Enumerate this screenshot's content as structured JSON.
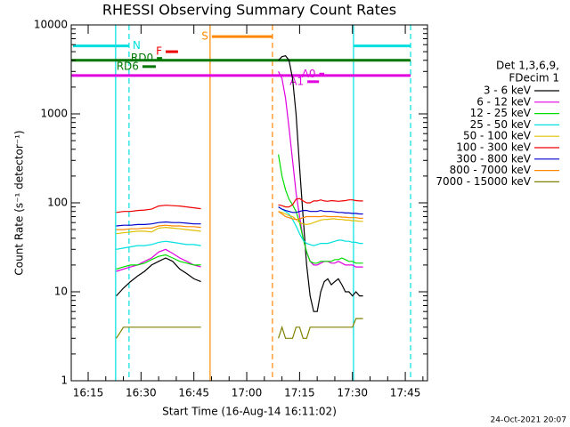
{
  "chart_data": {
    "type": "line",
    "title": "RHESSI Observing Summary Count Rates",
    "x_label": "Start Time (16-Aug-14 16:11:02)",
    "y_label": "Count Rate (s⁻¹ detector⁻¹)",
    "legend_title": [
      "Det 1,3,6,9,",
      "FDecim 1"
    ],
    "footer": "24-Oct-2021 20:07",
    "y_scale": "log",
    "xlim": [
      970.2,
      1071.3
    ],
    "ylim": [
      1,
      10000
    ],
    "xticks": [
      {
        "value": 975,
        "label": "16:15"
      },
      {
        "value": 990,
        "label": "16:30"
      },
      {
        "value": 1005,
        "label": "16:45"
      },
      {
        "value": 1020,
        "label": "17:00"
      },
      {
        "value": 1035,
        "label": "17:15"
      },
      {
        "value": 1050,
        "label": "17:30"
      },
      {
        "value": 1065,
        "label": "17:45"
      }
    ],
    "yticks": [
      1,
      10,
      100,
      1000,
      10000
    ],
    "x": [
      983,
      985,
      987,
      989,
      991,
      993,
      995,
      997,
      999,
      1001,
      1003,
      1005,
      1007,
      1018,
      1029,
      1030,
      1031,
      1032,
      1033,
      1034,
      1035,
      1036,
      1037,
      1038,
      1039,
      1040,
      1041,
      1042,
      1043,
      1044,
      1045,
      1046,
      1047,
      1048,
      1049,
      1050,
      1051,
      1052,
      1053
    ],
    "series": [
      {
        "name": "3 - 6 keV",
        "color": "#000000",
        "values": [
          9,
          11,
          13,
          15,
          17,
          20,
          22,
          24,
          22,
          18,
          16,
          14,
          13,
          null,
          4000,
          4400,
          4500,
          4000,
          2500,
          1000,
          250,
          70,
          20,
          9,
          6,
          6,
          10,
          13,
          14,
          12,
          13,
          14,
          12,
          10,
          10,
          9,
          10,
          9,
          9
        ]
      },
      {
        "name": "6 - 12 keV",
        "color": "#e000e0",
        "values": [
          17,
          18,
          19,
          20,
          22,
          24,
          28,
          30,
          27,
          24,
          22,
          20,
          19,
          null,
          3000,
          2500,
          1500,
          700,
          300,
          130,
          70,
          40,
          28,
          22,
          20,
          20,
          21,
          22,
          22,
          21,
          21,
          22,
          21,
          20,
          20,
          20,
          19,
          19,
          19
        ]
      },
      {
        "name": "12 - 25 keV",
        "color": "#00dd00",
        "values": [
          18,
          19,
          20,
          20,
          21,
          23,
          25,
          26,
          24,
          22,
          21,
          20,
          20,
          null,
          350,
          200,
          140,
          110,
          95,
          80,
          60,
          40,
          28,
          22,
          21,
          21,
          22,
          22,
          22,
          22,
          23,
          23,
          24,
          23,
          22,
          22,
          21,
          21,
          21
        ]
      },
      {
        "name": "25 - 50 keV",
        "color": "#00e0e0",
        "values": [
          30,
          31,
          32,
          33,
          33,
          34,
          36,
          37,
          36,
          35,
          34,
          34,
          33,
          null,
          90,
          85,
          80,
          75,
          65,
          55,
          45,
          38,
          35,
          34,
          33,
          34,
          35,
          35,
          35,
          36,
          37,
          38,
          38,
          37,
          37,
          36,
          36,
          35,
          35
        ]
      },
      {
        "name": "50 - 100 keV",
        "color": "#e0c000",
        "values": [
          45,
          46,
          47,
          48,
          48,
          47,
          52,
          53,
          52,
          51,
          50,
          49,
          48,
          null,
          80,
          78,
          75,
          72,
          70,
          65,
          60,
          58,
          57,
          58,
          60,
          62,
          64,
          65,
          65,
          66,
          66,
          65,
          65,
          64,
          64,
          63,
          63,
          62,
          62
        ]
      },
      {
        "name": "100 - 300 keV",
        "color": "#ee0000",
        "values": [
          78,
          80,
          80,
          82,
          83,
          85,
          92,
          94,
          93,
          92,
          90,
          88,
          86,
          null,
          95,
          93,
          90,
          90,
          95,
          110,
          112,
          105,
          100,
          100,
          105,
          105,
          108,
          105,
          104,
          106,
          105,
          104,
          105,
          106,
          108,
          108,
          106,
          105,
          105
        ]
      },
      {
        "name": "300 - 800 keV",
        "color": "#0000cc",
        "values": [
          55,
          56,
          56,
          57,
          57,
          58,
          60,
          61,
          60,
          60,
          59,
          58,
          58,
          null,
          90,
          85,
          82,
          80,
          78,
          78,
          80,
          82,
          82,
          80,
          80,
          80,
          82,
          80,
          80,
          80,
          79,
          78,
          78,
          77,
          77,
          76,
          76,
          75,
          75
        ]
      },
      {
        "name": "800 - 7000 keV",
        "color": "#ff8800",
        "values": [
          50,
          50,
          51,
          51,
          52,
          52,
          55,
          56,
          55,
          55,
          54,
          54,
          53,
          null,
          80,
          75,
          70,
          68,
          66,
          65,
          66,
          68,
          70,
          70,
          70,
          70,
          70,
          71,
          70,
          70,
          70,
          70,
          69,
          69,
          68,
          68,
          68,
          67,
          67
        ]
      },
      {
        "name": "7000 - 15000 keV",
        "color": "#808000",
        "values": [
          3,
          4,
          4,
          4,
          4,
          4,
          4,
          4,
          4,
          4,
          4,
          4,
          4,
          null,
          3,
          4,
          3,
          3,
          3,
          4,
          4,
          3,
          3,
          4,
          4,
          4,
          4,
          4,
          4,
          4,
          4,
          4,
          4,
          4,
          4,
          4,
          5,
          5,
          5
        ]
      }
    ],
    "flags": [
      {
        "color": "#007700",
        "x": [
          970.2,
          1066.5
        ],
        "y": 4000
      },
      {
        "color": "#e000e0",
        "x": [
          970.2,
          1066.5
        ],
        "y": 2700
      },
      {
        "label": "N",
        "color": "#00e0e0",
        "x": [
          970.7,
          986.6
        ],
        "y": 5800
      },
      {
        "color": "#00e0e0",
        "x": [
          1050.3,
          1066.5
        ],
        "y": 5800
      },
      {
        "label": "S",
        "color": "#ff8800",
        "x": [
          1010.1,
          1027.3
        ],
        "y": 7400
      },
      {
        "label": "F",
        "color": "#ee0000",
        "x": [
          997,
          1000.5
        ],
        "y": 5000
      },
      {
        "label": "RD6",
        "color": "#007700",
        "x": [
          990.4,
          994.2
        ],
        "y": 3400
      },
      {
        "label": "RD0",
        "color": "#007700",
        "x": [
          994.5,
          996
        ],
        "y": 4200
      },
      {
        "label": "A0",
        "color": "#e000e0",
        "x": [
          1040.6,
          1042
        ],
        "y": 2800
      },
      {
        "label": "A1",
        "color": "#e000e0",
        "x": [
          1037.2,
          1040.5
        ],
        "y": 2300
      }
    ],
    "vlines": [
      {
        "x": 982.8,
        "color": "#00e0e0",
        "dashed": false
      },
      {
        "x": 986.6,
        "color": "#00e0e0",
        "dashed": true
      },
      {
        "x": 1009.6,
        "color": "#ff8800",
        "dashed": false
      },
      {
        "x": 1027.3,
        "color": "#ff8800",
        "dashed": true
      },
      {
        "x": 1050.3,
        "color": "#00e0e0",
        "dashed": false
      },
      {
        "x": 1066.5,
        "color": "#00e0e0",
        "dashed": true
      }
    ]
  }
}
